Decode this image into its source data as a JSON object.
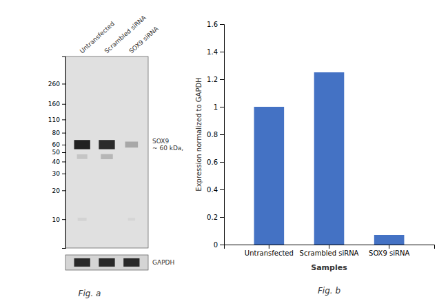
{
  "chart_data": [
    {
      "type": "western_blot",
      "categories": [
        "Untransfected",
        "Scrambled siRNA",
        "SOX9 siRNA"
      ],
      "log": "y",
      "ylim": [
        5,
        500
      ],
      "yticks": [
        260,
        160,
        110,
        80,
        60,
        50,
        40,
        30,
        20,
        10
      ],
      "annotations": [
        "SOX9\n~ 60 kDa,",
        "GAPDH",
        "Fig. a"
      ]
    },
    {
      "type": "bar",
      "categories": [
        "Untransfected",
        "Scrambled siRNA",
        "SOX9 siRNA"
      ],
      "values": [
        1.0,
        1.25,
        0.07
      ],
      "color": "#4472C4",
      "ylabel": "Expression normalized to GAPDH",
      "xlabel": "Samples",
      "ylim": [
        0,
        1.6
      ],
      "yticks": [
        0,
        0.2,
        0.4,
        0.6,
        0.8,
        1.0,
        1.2,
        1.4,
        1.6
      ],
      "annotations": [
        "Fig. b"
      ]
    }
  ]
}
